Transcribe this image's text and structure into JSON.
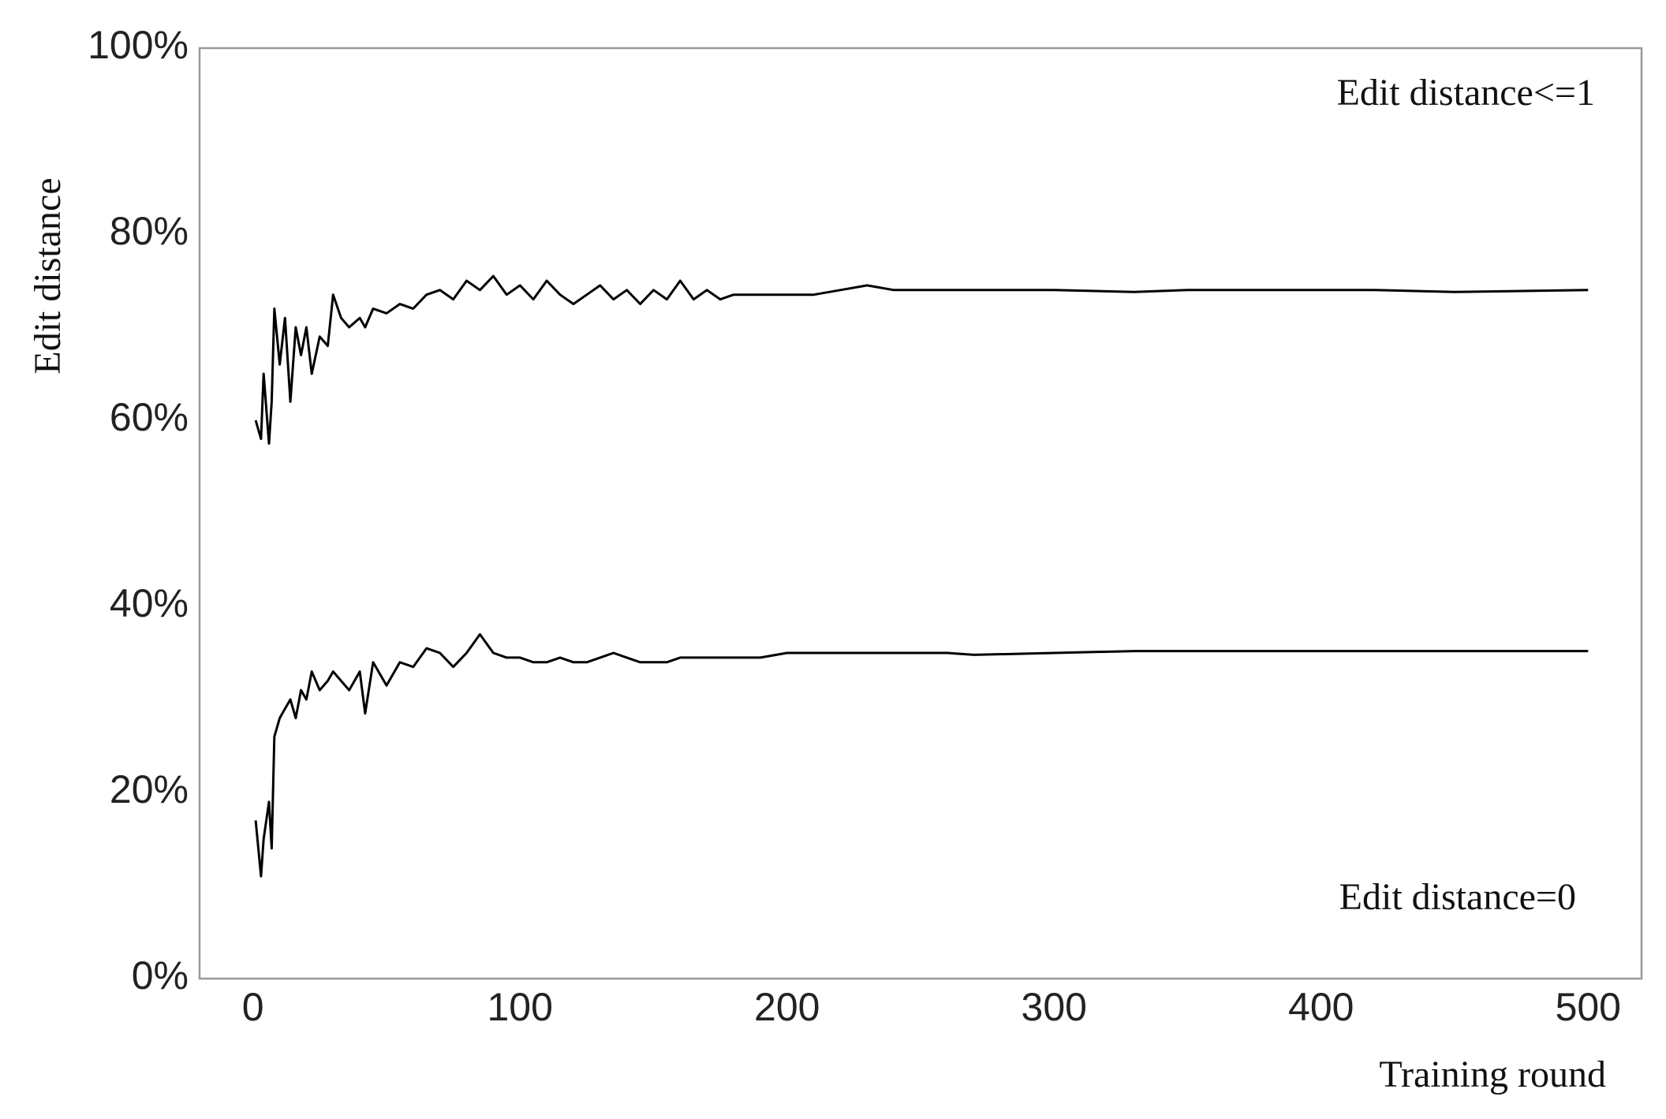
{
  "chart_data": {
    "type": "line",
    "y_label": "Edit distance",
    "x_label": "Training round",
    "annotations": [
      "Edit distance<=1",
      "Edit distance=0"
    ],
    "x": [
      1,
      3,
      4,
      6,
      7,
      8,
      10,
      12,
      14,
      16,
      18,
      20,
      22,
      25,
      28,
      30,
      33,
      36,
      40,
      42,
      45,
      50,
      55,
      60,
      65,
      70,
      75,
      80,
      85,
      90,
      95,
      100,
      105,
      110,
      115,
      120,
      125,
      130,
      135,
      140,
      145,
      150,
      155,
      160,
      165,
      170,
      175,
      180,
      190,
      200,
      210,
      220,
      230,
      240,
      250,
      260,
      270,
      300,
      330,
      350,
      400,
      420,
      450,
      500
    ],
    "series": [
      {
        "color": "#000000",
        "values": [
          60,
          58,
          65,
          57.5,
          62,
          72,
          66,
          71,
          62,
          70,
          67,
          70,
          65,
          69,
          68,
          73.5,
          71,
          70,
          71,
          70,
          72,
          71.5,
          72.5,
          72,
          73.5,
          74,
          73,
          75,
          74,
          75.5,
          73.5,
          74.5,
          73,
          75,
          73.5,
          72.5,
          73.5,
          74.5,
          73,
          74,
          72.5,
          74,
          73,
          75,
          73,
          74,
          73,
          73.5,
          73.5,
          73.5,
          73.5,
          74,
          74.5,
          74,
          74,
          74,
          74,
          74,
          73.8,
          74,
          74,
          74,
          73.8,
          74
        ]
      },
      {
        "color": "#000000",
        "values": [
          17,
          11,
          15,
          19,
          14,
          26,
          28,
          29,
          30,
          28,
          31,
          30,
          33,
          31,
          32,
          33,
          32,
          31,
          33,
          28.5,
          34,
          31.5,
          34,
          33.5,
          35.5,
          35,
          33.5,
          35,
          37,
          35,
          34.5,
          34.5,
          34,
          34,
          34.5,
          34,
          34,
          34.5,
          35,
          34.5,
          34,
          34,
          34,
          34.5,
          34.5,
          34.5,
          34.5,
          34.5,
          34.5,
          35,
          35,
          35,
          35,
          35,
          35,
          35,
          34.8,
          35,
          35.2,
          35.2,
          35.2,
          35.2,
          35.2,
          35.2
        ]
      }
    ],
    "xlim": [
      -20,
      520
    ],
    "xticks": [
      0,
      100,
      200,
      300,
      400,
      500
    ],
    "ylim": [
      0,
      100
    ],
    "yticks": [
      {
        "value": 0,
        "label": "0%"
      },
      {
        "value": 20,
        "label": "20%"
      },
      {
        "value": 40,
        "label": "40%"
      },
      {
        "value": 60,
        "label": "60%"
      },
      {
        "value": 80,
        "label": "80%"
      },
      {
        "value": 100,
        "label": "100%"
      }
    ],
    "grid": false
  }
}
